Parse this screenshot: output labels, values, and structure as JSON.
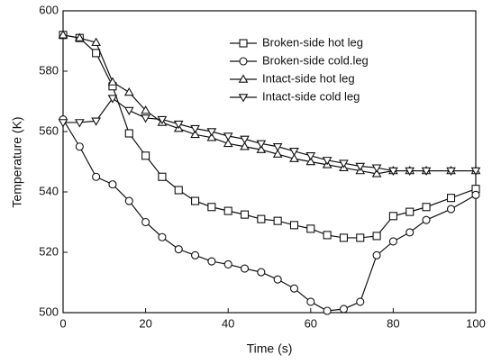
{
  "chart_data": {
    "type": "line",
    "x_label": "Time (s)",
    "y_label": "Temperature (K)",
    "xlim": [
      0,
      100
    ],
    "xticks": [
      0,
      20,
      40,
      60,
      80,
      100
    ],
    "ylim": [
      500,
      600
    ],
    "yticks": [
      500,
      520,
      540,
      560,
      580,
      600
    ],
    "legend": "upper right",
    "grid": false,
    "x": [
      0,
      4,
      8,
      12,
      16,
      20,
      24,
      28,
      32,
      36,
      40,
      44,
      48,
      52,
      56,
      60,
      64,
      68,
      72,
      76,
      80,
      84,
      88,
      94,
      100
    ],
    "series": [
      {
        "name": "Broken-side hot leg",
        "color": "#111111",
        "marker": "square",
        "values": [
          592,
          591,
          586,
          575,
          559.4,
          552,
          545,
          540.6,
          537,
          535,
          533.7,
          532.5,
          531,
          530.4,
          529,
          527.8,
          525.7,
          524.8,
          524.8,
          525.4,
          532,
          533.4,
          535,
          538,
          541
        ]
      },
      {
        "name": "Broken-side cold.leg",
        "color": "#111111",
        "marker": "circle",
        "values": [
          564,
          555,
          545,
          542.5,
          537,
          530,
          525,
          521,
          519,
          517,
          516,
          514.6,
          513.4,
          511,
          508,
          503.6,
          500.6,
          501.2,
          503.6,
          519,
          523.6,
          526.6,
          530.7,
          534.3,
          539
        ]
      },
      {
        "name": "Intact-side hot leg",
        "color": "#111111",
        "marker": "triangle-up",
        "values": [
          592,
          591,
          589.5,
          576.4,
          573,
          567,
          563,
          561,
          559,
          558,
          556,
          555,
          554,
          552.5,
          551,
          550,
          549,
          548,
          547,
          546,
          547,
          547,
          547,
          547,
          547
        ]
      },
      {
        "name": "Intact-side cold leg",
        "color": "#111111",
        "marker": "triangle-down",
        "values": [
          563,
          563,
          563.5,
          571,
          567,
          564.5,
          564,
          562.5,
          561,
          560,
          558.5,
          557.5,
          556,
          555,
          553.5,
          552,
          550.5,
          549.5,
          548.5,
          548,
          547,
          547,
          547,
          547,
          547
        ]
      }
    ]
  }
}
